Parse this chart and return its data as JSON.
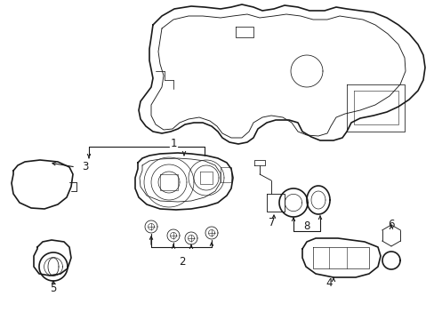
{
  "bg_color": "#ffffff",
  "line_color": "#1a1a1a",
  "fig_width": 4.89,
  "fig_height": 3.6,
  "dpi": 100,
  "label_fontsize": 8.5
}
